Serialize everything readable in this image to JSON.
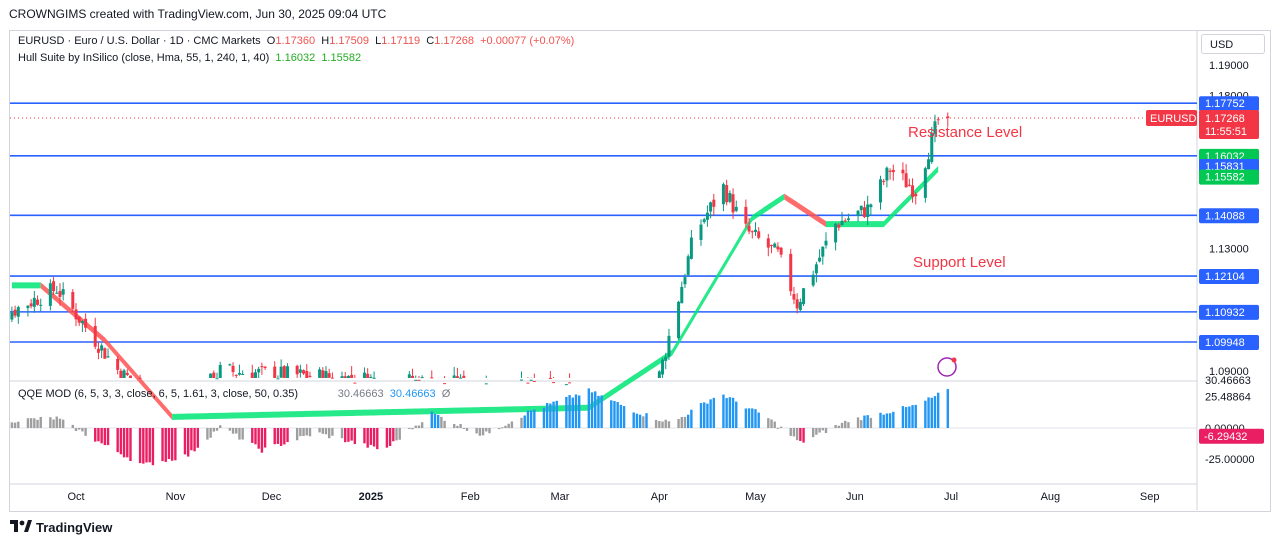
{
  "header": "CROWNGIMS created with TradingView.com, Jun 30, 2025 09:04 UTC",
  "symbol_info": {
    "name": "EURUSD · Euro / U.S. Dollar · 1D · CMC Markets",
    "o_label": "O",
    "o_value": "1.17360",
    "h_label": "H",
    "h_value": "1.17509",
    "l_label": "L",
    "l_value": "1.17119",
    "c_label": "C",
    "c_value": "1.17268",
    "change": "+0.00077 (+0.07%)"
  },
  "hull": {
    "label": "Hull Suite by InSilico (close, Hma, 55, 1, 240, 1, 40)",
    "v1": "1.16032",
    "v2": "1.15582"
  },
  "qqe": {
    "label": "QQE MOD (6, 5, 3, 3, close, 6, 5, 1.61, 3, close, 50, 0.35)",
    "v1": "30.46663",
    "v2": "30.46663",
    "symbol": "Ø"
  },
  "currency_button": "USD",
  "price_axis_ticks": [
    "1.19000",
    "1.13000",
    "1.09000"
  ],
  "price_axis_partial": [
    "1.18000",
    "30.46663"
  ],
  "qqe_axis_ticks": [
    "25.48864",
    "0.00000",
    "-25.00000"
  ],
  "qqe_badge": {
    "value": "-6.29432",
    "color": "#e91e63"
  },
  "level_badges": [
    {
      "value": "1.17752",
      "color": "#2962ff"
    },
    {
      "value": "1.16032",
      "color": "#00c853"
    },
    {
      "value": "1.15831",
      "color": "#2962ff"
    },
    {
      "value": "1.15582",
      "color": "#00c853"
    },
    {
      "value": "1.14088",
      "color": "#2962ff"
    },
    {
      "value": "1.12104",
      "color": "#2962ff"
    },
    {
      "value": "1.10932",
      "color": "#2962ff"
    },
    {
      "value": "1.09948",
      "color": "#2962ff"
    }
  ],
  "price_badge": {
    "symbol": "EURUSD",
    "value": "1.17268",
    "countdown": "11:55:51",
    "color": "#f23645"
  },
  "annotations": {
    "resistance": "Resistance Level",
    "support": "Support Level"
  },
  "time_axis": [
    "Oct",
    "Nov",
    "Dec",
    "2025",
    "Feb",
    "Mar",
    "Apr",
    "May",
    "Jun",
    "Jul",
    "Aug",
    "Sep"
  ],
  "footer": "TradingView",
  "colors": {
    "up": "#089981",
    "down": "#f23645",
    "hull_up": "#00e676",
    "hull_down": "#ff5252",
    "level": "#2962ff",
    "qqe_pos": "#2196f3",
    "qqe_neg": "#e91e63",
    "qqe_neutral": "#9e9e9e"
  },
  "chart_data": {
    "type": "candlestick",
    "ylim": [
      1.088,
      1.197
    ],
    "horizontal_levels": [
      1.17752,
      1.16032,
      1.14088,
      1.12104,
      1.10932,
      1.09948
    ],
    "last_price": 1.17268,
    "hull_waypoints": [
      {
        "date": "2024-09-01",
        "value": 1.118
      },
      {
        "date": "2024-09-20",
        "value": 1.118
      },
      {
        "date": "2024-10-10",
        "value": 1.1
      },
      {
        "date": "2024-10-31",
        "value": 1.075
      },
      {
        "date": "2025-03-10",
        "value": 1.078
      },
      {
        "date": "2025-04-05",
        "value": 1.096
      },
      {
        "date": "2025-04-30",
        "value": 1.14
      },
      {
        "date": "2025-05-10",
        "value": 1.147
      },
      {
        "date": "2025-05-23",
        "value": 1.138
      },
      {
        "date": "2025-06-10",
        "value": 1.138
      },
      {
        "date": "2025-06-27",
        "value": 1.156
      }
    ],
    "price_waypoints": [
      {
        "date": "2024-09-01",
        "value": 1.105
      },
      {
        "date": "2024-09-10",
        "value": 1.109
      },
      {
        "date": "2024-09-25",
        "value": 1.117
      },
      {
        "date": "2024-10-15",
        "value": 1.089
      },
      {
        "date": "2024-11-05",
        "value": 1.078
      },
      {
        "date": "2024-11-15",
        "value": 1.09
      },
      {
        "date": "2025-03-15",
        "value": 1.083
      },
      {
        "date": "2025-03-30",
        "value": 1.08
      },
      {
        "date": "2025-04-12",
        "value": 1.135
      },
      {
        "date": "2025-04-21",
        "value": 1.15
      },
      {
        "date": "2025-04-28",
        "value": 1.136
      },
      {
        "date": "2025-05-08",
        "value": 1.128
      },
      {
        "date": "2025-05-14",
        "value": 1.112
      },
      {
        "date": "2025-05-26",
        "value": 1.138
      },
      {
        "date": "2025-06-05",
        "value": 1.143
      },
      {
        "date": "2025-06-12",
        "value": 1.156
      },
      {
        "date": "2025-06-20",
        "value": 1.149
      },
      {
        "date": "2025-06-27",
        "value": 1.172
      },
      {
        "date": "2025-06-30",
        "value": 1.17268
      }
    ],
    "qqe_values": [
      {
        "date": "2024-09-01",
        "value": -4
      },
      {
        "date": "2024-09-10",
        "value": 6
      },
      {
        "date": "2024-09-25",
        "value": 8
      },
      {
        "date": "2024-10-10",
        "value": -14
      },
      {
        "date": "2024-10-22",
        "value": -30
      },
      {
        "date": "2024-11-05",
        "value": -22
      },
      {
        "date": "2024-11-15",
        "value": 1
      },
      {
        "date": "2024-11-28",
        "value": -18
      },
      {
        "date": "2024-12-15",
        "value": -4
      },
      {
        "date": "2025-01-05",
        "value": -18
      },
      {
        "date": "2025-01-20",
        "value": 12
      },
      {
        "date": "2025-02-05",
        "value": -6
      },
      {
        "date": "2025-02-20",
        "value": 14
      },
      {
        "date": "2025-03-10",
        "value": 30
      },
      {
        "date": "2025-03-26",
        "value": 12
      },
      {
        "date": "2025-04-05",
        "value": 4
      },
      {
        "date": "2025-04-20",
        "value": 28
      },
      {
        "date": "2025-05-05",
        "value": 8
      },
      {
        "date": "2025-05-15",
        "value": -12
      },
      {
        "date": "2025-05-30",
        "value": 6
      },
      {
        "date": "2025-06-20",
        "value": 18
      },
      {
        "date": "2025-06-30",
        "value": 30.46663
      }
    ]
  }
}
